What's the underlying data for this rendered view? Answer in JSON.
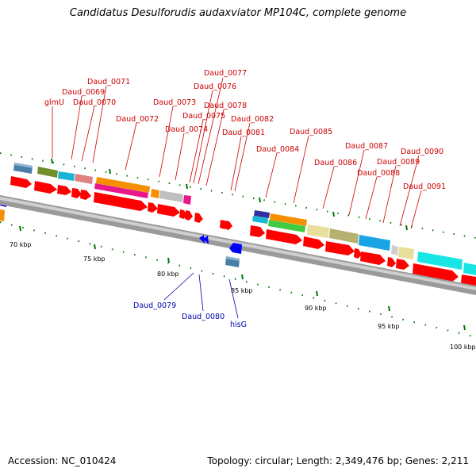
{
  "title": "Candidatus Desulforudis audaxviator MP104C, complete genome",
  "accession": "Accession: NC_010424",
  "summary": "Topology: circular; Length: 2,349,476 bp; Genes: 2,211",
  "colors": {
    "forward_cds": "#ff0000",
    "reverse_cds": "#0000ff",
    "forward_label": "#cc0000",
    "reverse_label": "#0000aa",
    "backbone": "#888888",
    "tick": "#007700"
  },
  "scale_labels": [
    "70 kbp",
    "75 kbp",
    "80 kbp",
    "85 kbp",
    "90 kbp",
    "95 kbp",
    "100 kbp"
  ],
  "forward_gene_labels": [
    "glmU",
    "Daud_0069",
    "Daud_0070",
    "Daud_0071",
    "Daud_0072",
    "Daud_0073",
    "Daud_0074",
    "Daud_0075",
    "Daud_0076",
    "Daud_0077",
    "Daud_0078",
    "Daud_0081",
    "Daud_0082",
    "Daud_0084",
    "Daud_0085",
    "Daud_0086",
    "Daud_0087",
    "Daud_0088",
    "Daud_0089",
    "Daud_0090",
    "Daud_0091"
  ],
  "reverse_gene_labels": [
    "Daud_0079",
    "Daud_0080",
    "hisG"
  ]
}
